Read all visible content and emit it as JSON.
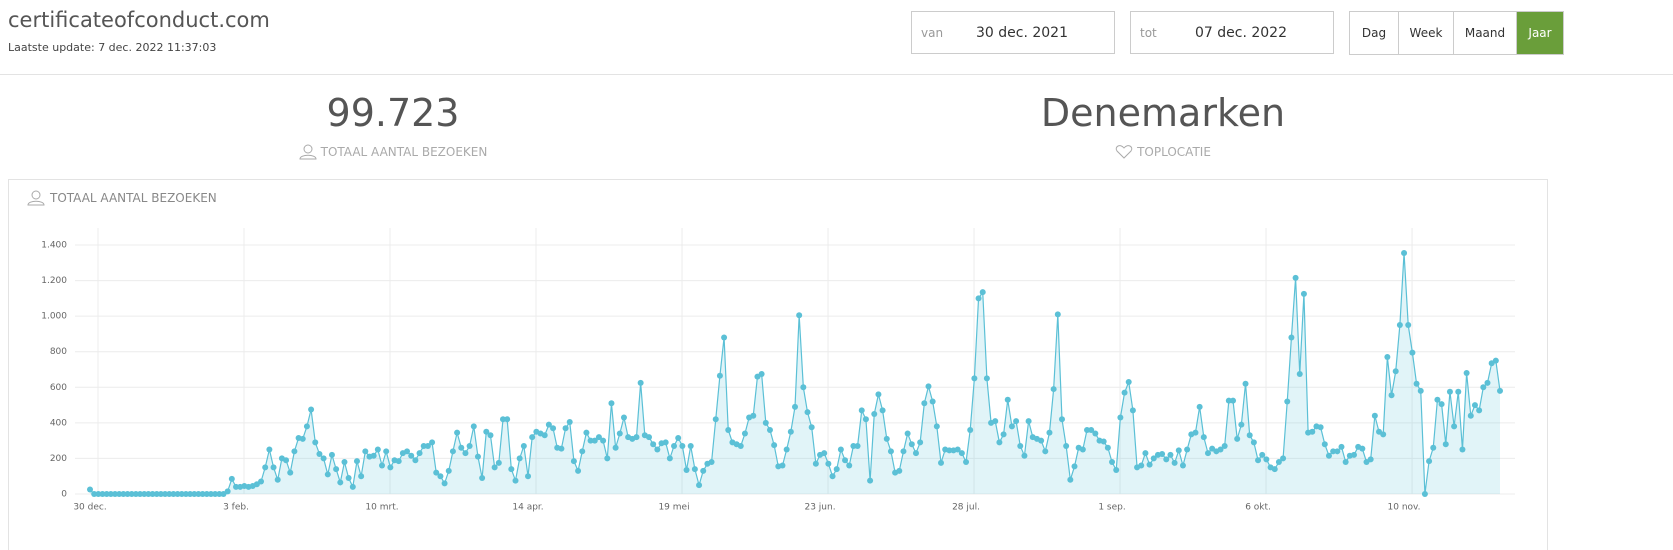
{
  "header": {
    "title": "certificateofconduct.com",
    "last_update": "Laatste update: 7 dec. 2022 11:37:03"
  },
  "filters": {
    "from_label": "van",
    "from": "30 dec. 2021",
    "to_label": "tot",
    "to": "07 dec. 2022",
    "periods": [
      "Dag",
      "Week",
      "Maand",
      "Jaar"
    ],
    "active_period": "Jaar"
  },
  "stats": [
    {
      "value": "99.723",
      "label": "TOTAAL AANTAL BEZOEKEN"
    },
    {
      "value": "Denemarken",
      "label": "TOPLOCATIE"
    }
  ],
  "chart_data": {
    "type": "area",
    "title": "TOTAAL AANTAL BEZOEKEN",
    "color": "#5bc0d6",
    "grid": true,
    "ylim": [
      0,
      1400
    ],
    "yticks": [
      {
        "value": 0,
        "label": "0"
      },
      {
        "value": 200,
        "label": "200"
      },
      {
        "value": 400,
        "label": "400"
      },
      {
        "value": 600,
        "label": "600"
      },
      {
        "value": 800,
        "label": "800"
      },
      {
        "value": 1000,
        "label": "1.000"
      },
      {
        "value": 1200,
        "label": "1.200"
      },
      {
        "value": 1400,
        "label": "1.400"
      }
    ],
    "categories": [
      "30 dec.",
      null,
      null,
      null,
      null,
      null,
      null,
      null,
      null,
      null,
      null,
      null,
      null,
      null,
      null,
      null,
      null,
      null,
      null,
      null,
      null,
      null,
      null,
      null,
      null,
      null,
      null,
      null,
      null,
      null,
      null,
      null,
      null,
      null,
      null,
      "3 feb.",
      null,
      null,
      null,
      null,
      null,
      null,
      null,
      null,
      null,
      null,
      null,
      null,
      null,
      null,
      null,
      null,
      null,
      null,
      null,
      null,
      null,
      null,
      null,
      null,
      null,
      null,
      null,
      null,
      null,
      null,
      null,
      null,
      null,
      null,
      "10 mrt.",
      null,
      null,
      null,
      null,
      null,
      null,
      null,
      null,
      null,
      null,
      null,
      null,
      null,
      null,
      null,
      null,
      null,
      null,
      null,
      null,
      null,
      null,
      null,
      null,
      null,
      null,
      null,
      null,
      null,
      null,
      null,
      null,
      null,
      null,
      "14 apr.",
      null,
      null,
      null,
      null,
      null,
      null,
      null,
      null,
      null,
      null,
      null,
      null,
      null,
      null,
      null,
      null,
      null,
      null,
      null,
      null,
      null,
      null,
      null,
      null,
      null,
      null,
      null,
      null,
      null,
      null,
      null,
      null,
      null,
      null,
      "19 mei",
      null,
      null,
      null,
      null,
      null,
      null,
      null,
      null,
      null,
      null,
      null,
      null,
      null,
      null,
      null,
      null,
      null,
      null,
      null,
      null,
      null,
      null,
      null,
      null,
      null,
      null,
      null,
      null,
      null,
      null,
      null,
      null,
      null,
      null,
      "23 jun.",
      null,
      null,
      null,
      null,
      null,
      null,
      null,
      null,
      null,
      null,
      null,
      null,
      null,
      null,
      null,
      null,
      null,
      null,
      null,
      null,
      null,
      null,
      null,
      null,
      null,
      null,
      null,
      null,
      null,
      null,
      null,
      null,
      null,
      null,
      "28 jul.",
      null,
      null,
      null,
      null,
      null,
      null,
      null,
      null,
      null,
      null,
      null,
      null,
      null,
      null,
      null,
      null,
      null,
      null,
      null,
      null,
      null,
      null,
      null,
      null,
      null,
      null,
      null,
      null,
      null,
      null,
      null,
      null,
      null,
      null,
      "1 sep.",
      null,
      null,
      null,
      null,
      null,
      null,
      null,
      null,
      null,
      null,
      null,
      null,
      null,
      null,
      null,
      null,
      null,
      null,
      null,
      null,
      null,
      null,
      null,
      null,
      null,
      null,
      null,
      null,
      null,
      null,
      null,
      null,
      null,
      null,
      "6 okt.",
      null,
      null,
      null,
      null,
      null,
      null,
      null,
      null,
      null,
      null,
      null,
      null,
      null,
      null,
      null,
      null,
      null,
      null,
      null,
      null,
      null,
      null,
      null,
      null,
      null,
      null,
      null,
      null,
      null,
      null,
      null,
      null,
      null,
      null,
      "10 nov.",
      null,
      null,
      null,
      null,
      null,
      null,
      null,
      null,
      null,
      null,
      null,
      null,
      null,
      null,
      null,
      null,
      null,
      null,
      null,
      null,
      null,
      null,
      null
    ],
    "values": [
      25,
      0,
      0,
      0,
      0,
      0,
      0,
      0,
      0,
      0,
      0,
      0,
      0,
      0,
      0,
      0,
      0,
      0,
      0,
      0,
      0,
      0,
      0,
      0,
      0,
      0,
      0,
      0,
      0,
      0,
      0,
      0,
      0,
      15,
      85,
      40,
      40,
      45,
      40,
      45,
      55,
      70,
      150,
      250,
      150,
      80,
      200,
      190,
      120,
      240,
      315,
      310,
      380,
      475,
      290,
      225,
      200,
      110,
      220,
      140,
      65,
      180,
      90,
      40,
      185,
      100,
      240,
      210,
      215,
      250,
      160,
      240,
      150,
      190,
      185,
      230,
      240,
      215,
      190,
      230,
      270,
      270,
      290,
      120,
      100,
      60,
      130,
      240,
      345,
      260,
      230,
      270,
      380,
      210,
      90,
      350,
      330,
      150,
      175,
      420,
      420,
      140,
      75,
      200,
      270,
      100,
      320,
      350,
      340,
      330,
      390,
      370,
      260,
      255,
      370,
      405,
      185,
      130,
      240,
      345,
      300,
      300,
      320,
      300,
      200,
      510,
      260,
      340,
      430,
      320,
      310,
      320,
      625,
      330,
      320,
      280,
      250,
      285,
      290,
      200,
      270,
      315,
      270,
      135,
      270,
      140,
      50,
      130,
      170,
      180,
      420,
      665,
      880,
      360,
      290,
      280,
      270,
      340,
      430,
      440,
      660,
      675,
      400,
      360,
      275,
      155,
      160,
      250,
      350,
      490,
      1005,
      600,
      460,
      375,
      170,
      220,
      230,
      170,
      100,
      140,
      250,
      190,
      160,
      270,
      270,
      470,
      420,
      75,
      450,
      560,
      470,
      310,
      240,
      120,
      130,
      240,
      340,
      280,
      230,
      290,
      510,
      605,
      520,
      380,
      175,
      250,
      245,
      245,
      250,
      230,
      180,
      360,
      650,
      1100,
      1135,
      650,
      400,
      410,
      290,
      335,
      530,
      380,
      410,
      270,
      215,
      410,
      320,
      310,
      300,
      240,
      345,
      590,
      1010,
      420,
      270,
      80,
      155,
      260,
      250,
      360,
      360,
      340,
      300,
      295,
      260,
      180,
      135,
      430,
      570,
      630,
      470,
      150,
      160,
      230,
      165,
      200,
      220,
      225,
      195,
      220,
      175,
      245,
      160,
      250,
      335,
      345,
      490,
      320,
      230,
      255,
      240,
      250,
      270,
      525,
      525,
      310,
      390,
      620,
      330,
      290,
      190,
      220,
      195,
      150,
      140,
      180,
      200,
      520,
      880,
      1215,
      675,
      1125,
      345,
      350,
      380,
      375,
      280,
      215,
      240,
      240,
      265,
      180,
      215,
      220,
      265,
      255,
      180,
      195,
      440,
      350,
      335,
      770,
      555,
      690,
      950,
      1355,
      950,
      795,
      620,
      580,
      0,
      185,
      260,
      530,
      505,
      280,
      575,
      380,
      575,
      250,
      680,
      440,
      500,
      470,
      600,
      625,
      735,
      750,
      580
    ]
  }
}
